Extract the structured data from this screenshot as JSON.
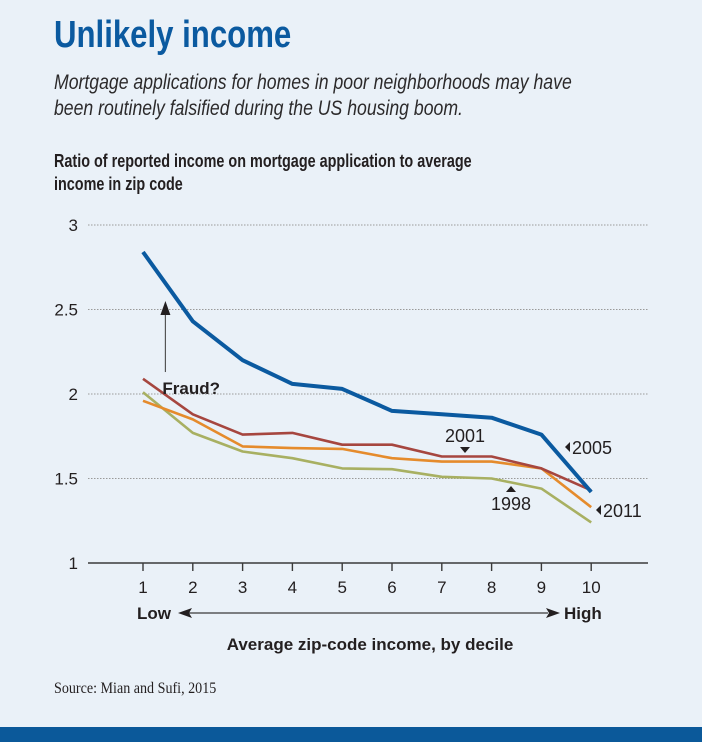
{
  "header": {
    "title": "Unlikely income",
    "subtitle_line1": "Mortgage applications for homes in poor neighborhoods may have",
    "subtitle_line2": "been routinely falsified during the US housing boom.",
    "ylabel_line1": "Ratio of reported income on mortgage application to average",
    "ylabel_line2": "income in zip code"
  },
  "footer": {
    "source": "Source: Mian and Sufi, 2015",
    "bar_color": "#0b599a"
  },
  "colors": {
    "title": "#0b5aa0",
    "background": "#eaf1f8"
  },
  "chart_data": {
    "type": "line",
    "title": "Unlikely income",
    "xlabel": "Average zip-code income, by decile",
    "ylabel": "Ratio of reported income on mortgage application to average income in zip code",
    "x": [
      1,
      2,
      3,
      4,
      5,
      6,
      7,
      8,
      9,
      10
    ],
    "xlim": [
      1,
      10
    ],
    "ylim": [
      1,
      3
    ],
    "yticks": [
      1,
      1.5,
      2,
      2.5,
      3
    ],
    "ytick_labels": [
      "1",
      "1.5",
      "2",
      "2.5",
      "3"
    ],
    "xtick_labels": [
      "1",
      "2",
      "3",
      "4",
      "5",
      "6",
      "7",
      "8",
      "9",
      "10"
    ],
    "grid": "horizontal-dotted",
    "x_low_label": "Low",
    "x_high_label": "High",
    "series": [
      {
        "name": "2005",
        "color": "#0b5aa0",
        "values": [
          2.84,
          2.43,
          2.2,
          2.06,
          2.03,
          1.9,
          1.88,
          1.86,
          1.76,
          1.42
        ]
      },
      {
        "name": "2001",
        "color": "#a6463f",
        "values": [
          2.09,
          1.88,
          1.76,
          1.77,
          1.7,
          1.7,
          1.63,
          1.63,
          1.56,
          1.43
        ]
      },
      {
        "name": "2011",
        "color": "#e58b2c",
        "values": [
          1.96,
          1.85,
          1.69,
          1.68,
          1.675,
          1.62,
          1.6,
          1.6,
          1.56,
          1.33
        ]
      },
      {
        "name": "1998",
        "color": "#a8b062",
        "values": [
          2.01,
          1.77,
          1.66,
          1.62,
          1.56,
          1.555,
          1.51,
          1.5,
          1.44,
          1.24
        ]
      }
    ],
    "annotations": [
      {
        "text": "Fraud?",
        "type": "arrow-up",
        "x": 1.45,
        "y_from": 2.13,
        "y_to": 2.55
      },
      {
        "text": "2005",
        "type": "series-label-left-pointer",
        "series": "2005"
      },
      {
        "text": "2011",
        "type": "series-label-left-pointer",
        "series": "2011"
      },
      {
        "text": "2001",
        "type": "series-label-down-pointer",
        "series": "2001",
        "x": 7.45
      },
      {
        "text": "1998",
        "type": "series-label-up-pointer",
        "series": "1998",
        "x": 8.4
      }
    ]
  }
}
